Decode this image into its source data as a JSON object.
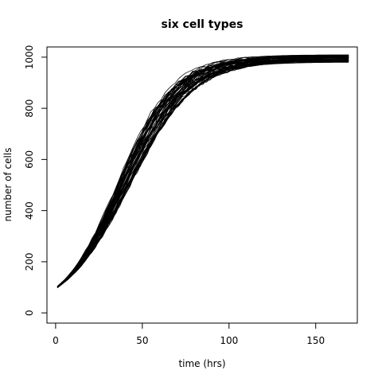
{
  "chart_data": {
    "type": "line",
    "title": "six cell types",
    "xlabel": "time (hrs)",
    "ylabel": "number of cells",
    "xlim": [
      -5,
      174
    ],
    "ylim": [
      -40,
      1040
    ],
    "x_ticks": [
      0,
      50,
      100,
      150
    ],
    "y_ticks": [
      0,
      200,
      400,
      600,
      800,
      1000
    ],
    "grid": false,
    "legend": "none",
    "line_color": "#000000",
    "series_count": 60,
    "x_range": [
      1,
      169
    ],
    "description_model": "logistic growth curves: initial ~100 cells, carrying capacity ~980-1010 cells, midpoint ~55-62 hrs",
    "representative_points": {
      "x": [
        1,
        10,
        20,
        30,
        40,
        50,
        60,
        70,
        80,
        90,
        100,
        110,
        120,
        140,
        169
      ],
      "y": [
        100,
        150,
        210,
        290,
        380,
        500,
        650,
        790,
        890,
        950,
        980,
        995,
        1000,
        1000,
        1000
      ]
    }
  }
}
